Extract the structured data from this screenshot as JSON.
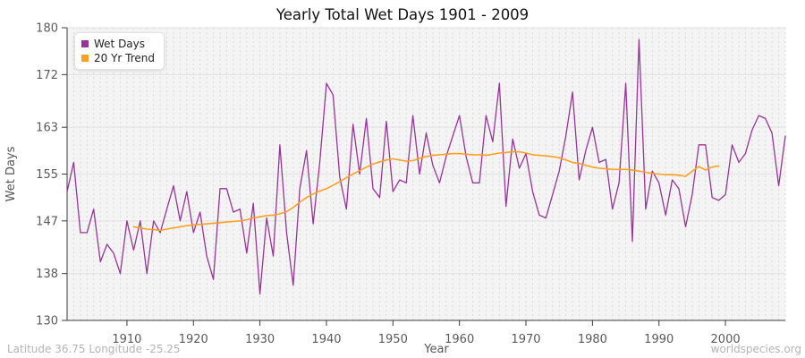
{
  "title": "Yearly Total Wet Days 1901 - 2009",
  "footer": {
    "left": "Latitude 36.75 Longitude -25.25",
    "right": "worldspecies.org"
  },
  "legend": [
    {
      "label": "Wet Days",
      "color": "#993399"
    },
    {
      "label": "20 Yr Trend",
      "color": "#ffa022"
    }
  ],
  "axes": {
    "x_label": "Year",
    "y_label": "Wet Days",
    "y_ticks": [
      130,
      138,
      147,
      155,
      163,
      172,
      180
    ],
    "x_ticks": [
      1910,
      1920,
      1930,
      1940,
      1950,
      1960,
      1970,
      1980,
      1990,
      2000
    ],
    "y_range": [
      130,
      180
    ],
    "x_range": [
      1901,
      2009
    ],
    "grid": true,
    "legend_position": "top-left"
  },
  "colors": {
    "plot_background": "#f4f4f4",
    "h_gridline": "#e2e2e2",
    "v_gridline": "#d9d9d9",
    "axis": "#3c3c3c",
    "tick_text": "#5a5a5a",
    "axis_label_text": "#555555",
    "title_text": "#111111",
    "wet_days_line": "#993399",
    "trend_line": "#ffa022"
  },
  "chart_data": {
    "type": "line",
    "title": "Yearly Total Wet Days 1901 - 2009",
    "xlabel": "Year",
    "ylabel": "Wet Days",
    "ylim": [
      130,
      180
    ],
    "xlim": [
      1901,
      2009
    ],
    "series": [
      {
        "name": "Wet Days",
        "x_first": 1901,
        "x_last": 2009,
        "x_step": 1,
        "values": [
          152,
          157,
          145,
          145,
          149,
          140,
          143,
          141.5,
          138,
          147,
          142,
          147,
          138,
          147,
          145,
          149,
          153,
          147,
          152,
          145,
          148.5,
          141,
          137,
          152.5,
          152.5,
          148.5,
          149,
          141.5,
          150,
          134.5,
          147.5,
          141,
          160,
          145,
          136,
          152.5,
          159,
          146.5,
          157,
          170.5,
          168.5,
          154.5,
          149,
          163.5,
          155,
          164.5,
          152.5,
          151,
          164,
          152,
          154,
          153.5,
          165,
          155,
          162,
          156.5,
          153.5,
          158,
          161.5,
          165,
          158,
          153.5,
          153.5,
          165,
          160.5,
          170.5,
          149.5,
          161,
          156,
          158.5,
          152,
          148,
          147.5,
          151.5,
          155.5,
          161.5,
          169,
          154,
          159,
          163,
          157,
          157.5,
          149,
          153.5,
          170.5,
          143.5,
          178,
          149,
          155.5,
          153.5,
          148,
          154,
          152.5,
          146,
          151.5,
          160,
          160,
          151,
          150.5,
          151.5,
          160,
          157,
          158.5,
          162.5,
          165,
          164.5,
          162,
          153,
          161.5
        ]
      },
      {
        "name": "20 Yr Trend",
        "x_first": 1911,
        "x_last": 1999,
        "x_step": 1,
        "values": [
          146,
          145.8,
          145.6,
          145.5,
          145.4,
          145.6,
          145.8,
          146,
          146.2,
          146.3,
          146.4,
          146.5,
          146.6,
          146.7,
          146.8,
          146.9,
          147,
          147.2,
          147.5,
          147.7,
          147.9,
          148,
          148.2,
          148.6,
          149.3,
          150.2,
          151,
          151.6,
          152.1,
          152.5,
          153.1,
          153.7,
          154.4,
          155,
          155.6,
          156.2,
          156.7,
          157.1,
          157.4,
          157.6,
          157.4,
          157.2,
          157.3,
          157.7,
          158,
          158.2,
          158.3,
          158.4,
          158.5,
          158.5,
          158.4,
          158.3,
          158.3,
          158.2,
          158.4,
          158.6,
          158.7,
          158.8,
          158.8,
          158.6,
          158.3,
          158.2,
          158.1,
          158,
          157.8,
          157.4,
          157,
          156.8,
          156.5,
          156.2,
          156,
          155.9,
          155.8,
          155.8,
          155.8,
          155.7,
          155.5,
          155.3,
          155.1,
          155,
          154.9,
          154.9,
          154.8,
          154.6,
          155.5,
          156.3,
          155.7,
          156.2,
          156.4
        ]
      }
    ]
  }
}
